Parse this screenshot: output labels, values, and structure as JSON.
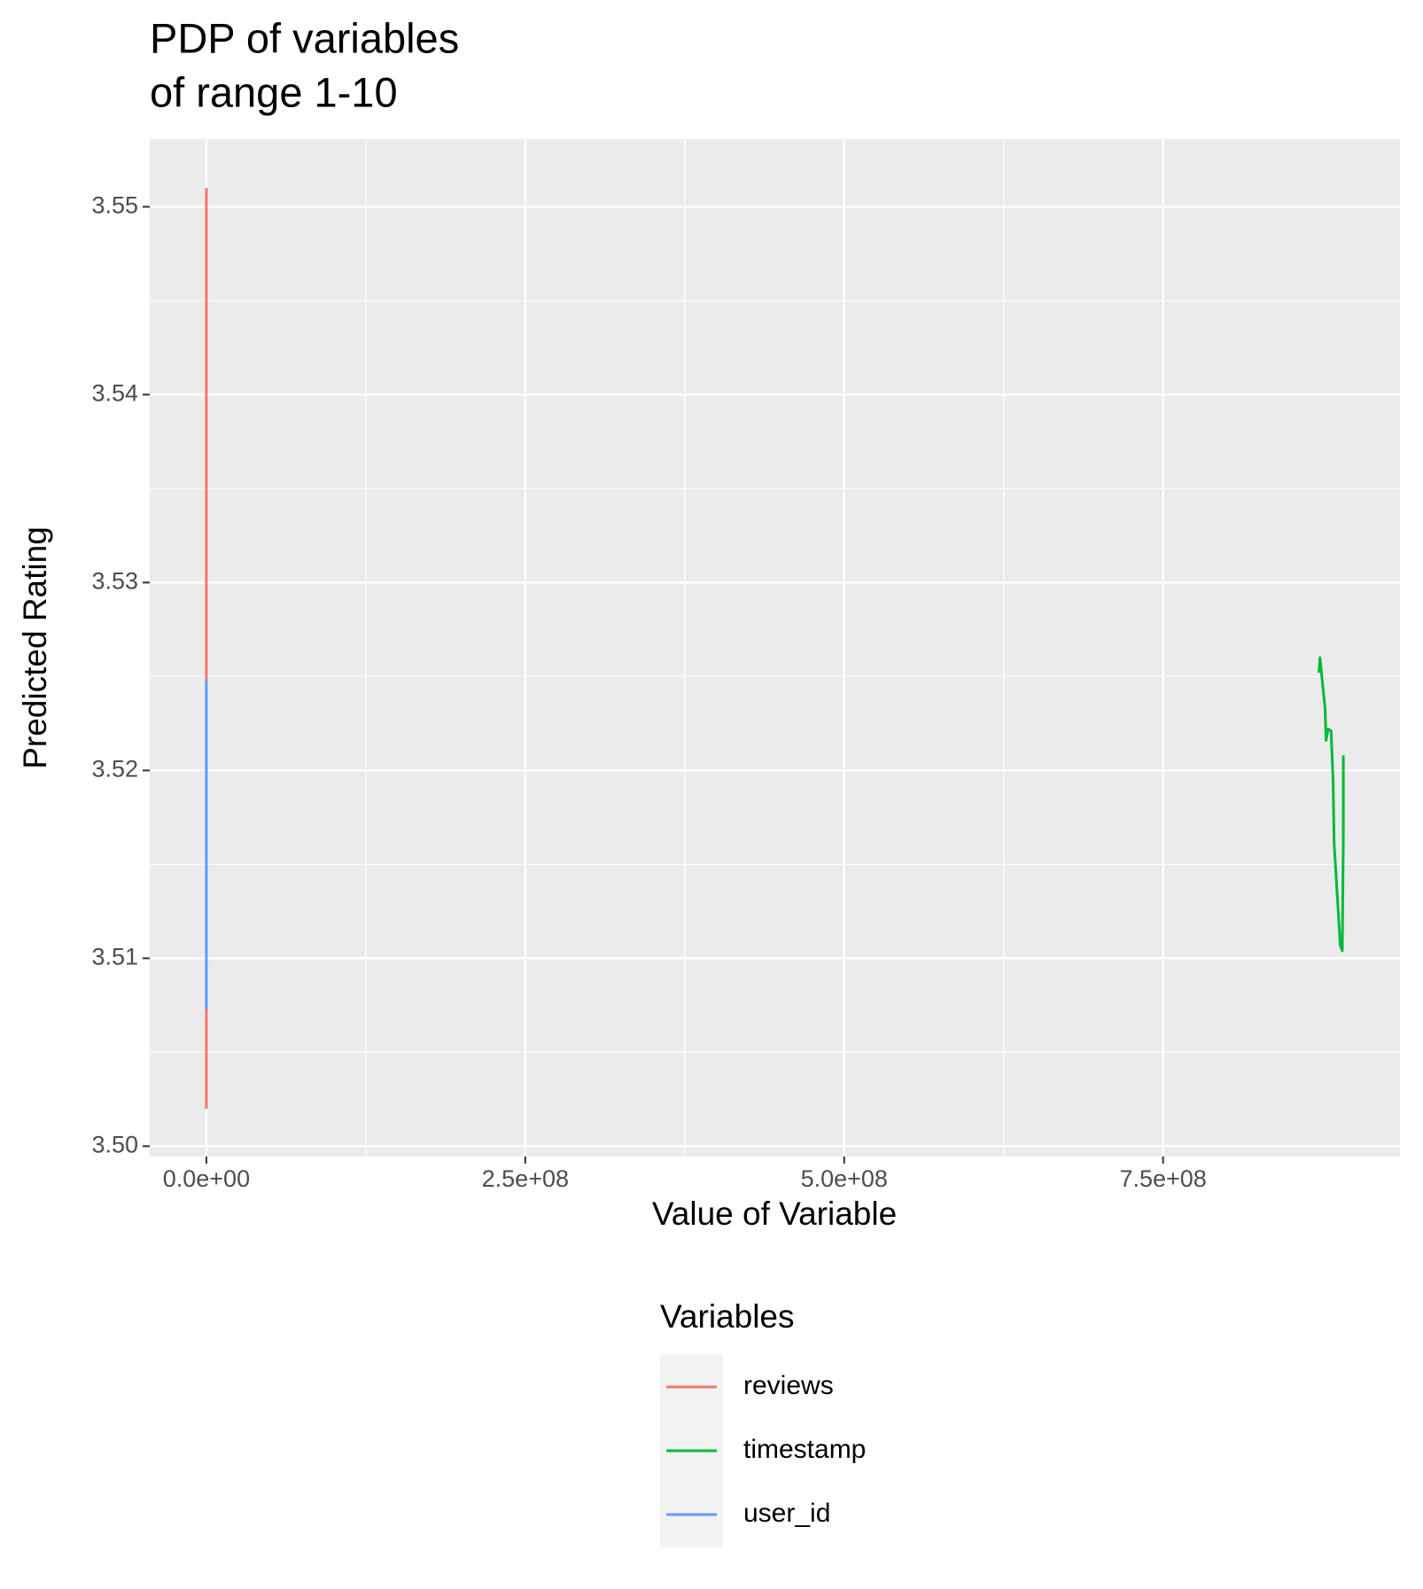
{
  "chart_data": {
    "type": "line",
    "title": [
      "PDP of variables",
      "of range 1-10"
    ],
    "x_label": "Value of Variable",
    "y_label": "Predicted Rating",
    "legend_title": "Variables",
    "xlim": [
      -44400000,
      935700000
    ],
    "ylim": [
      3.49945,
      3.5536
    ],
    "xticks": [
      {
        "value": 0,
        "label": "0.0e+00"
      },
      {
        "value": 250000000,
        "label": "2.5e+08"
      },
      {
        "value": 500000000,
        "label": "5.0e+08"
      },
      {
        "value": 750000000,
        "label": "7.5e+08"
      }
    ],
    "yticks": [
      {
        "value": 3.5,
        "label": "3.50"
      },
      3.51,
      3.52,
      3.53,
      3.54,
      3.55
    ],
    "grid": true,
    "series": [
      {
        "name": "reviews",
        "color": "#F8766D",
        "x": [
          1,
          2,
          3,
          4,
          5,
          6,
          7,
          8,
          9,
          10
        ],
        "values": [
          3.551,
          3.538,
          3.53,
          3.524,
          3.518,
          3.514,
          3.51,
          3.507,
          3.504,
          3.502
        ]
      },
      {
        "name": "timestamp",
        "color": "#00BA38",
        "x": [
          872200000,
          873000000,
          874600000,
          877000000,
          877800000,
          879400000,
          881700000,
          883300000,
          884100000,
          886500000,
          888900000,
          890500000,
          891300000,
          891300000
        ],
        "values": [
          3.5252,
          3.526,
          3.5249,
          3.5233,
          3.5216,
          3.5222,
          3.5221,
          3.5194,
          3.5161,
          3.5134,
          3.5107,
          3.5104,
          3.5164,
          3.5208
        ]
      },
      {
        "name": "user_id",
        "color": "#619CFF",
        "x": [
          1,
          2,
          3,
          4,
          5,
          6,
          7,
          8,
          9,
          10
        ],
        "values": [
          3.5248,
          3.523,
          3.521,
          3.519,
          3.517,
          3.515,
          3.513,
          3.511,
          3.509,
          3.5073
        ]
      }
    ]
  }
}
